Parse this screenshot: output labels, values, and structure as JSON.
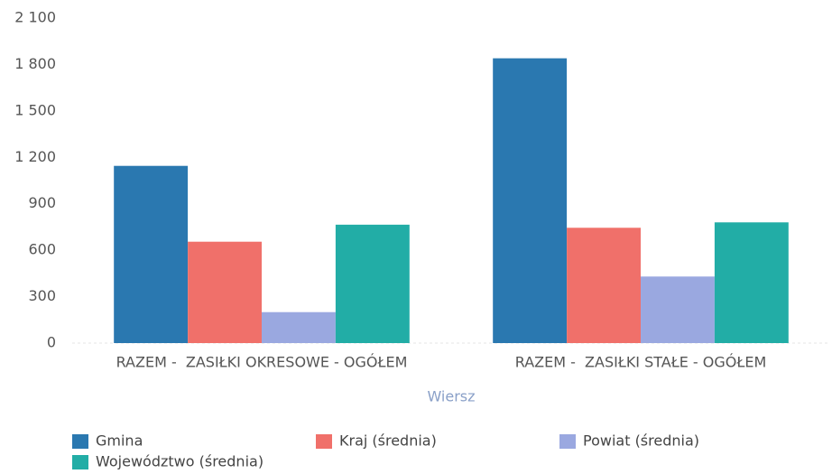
{
  "chart_data": {
    "type": "bar",
    "categories": [
      "RAZEM -  ZASIŁKI OKRESOWE - OGÓŁEM",
      "RAZEM -  ZASIŁKI STAŁE - OGÓŁEM"
    ],
    "series": [
      {
        "name": "Gmina",
        "color": "#2a78b0",
        "values": [
          1145,
          1840
        ]
      },
      {
        "name": "Kraj (średnia)",
        "color": "#f0706a",
        "values": [
          655,
          745
        ]
      },
      {
        "name": "Powiat (średnia)",
        "color": "#9aa8e0",
        "values": [
          200,
          430
        ]
      },
      {
        "name": "Województwo (średnia)",
        "color": "#22ada6",
        "values": [
          765,
          780
        ]
      }
    ],
    "x_label": "Wiersz",
    "ylim": [
      0,
      2100
    ],
    "yticks": [
      0,
      300,
      600,
      900,
      {
        "value": 1200,
        "label": "1 200"
      },
      {
        "value": 1500,
        "label": "1 500"
      },
      {
        "value": 1800,
        "label": "1 800"
      },
      {
        "value": 2100,
        "label": "2 100"
      }
    ],
    "legend": "bottom"
  }
}
